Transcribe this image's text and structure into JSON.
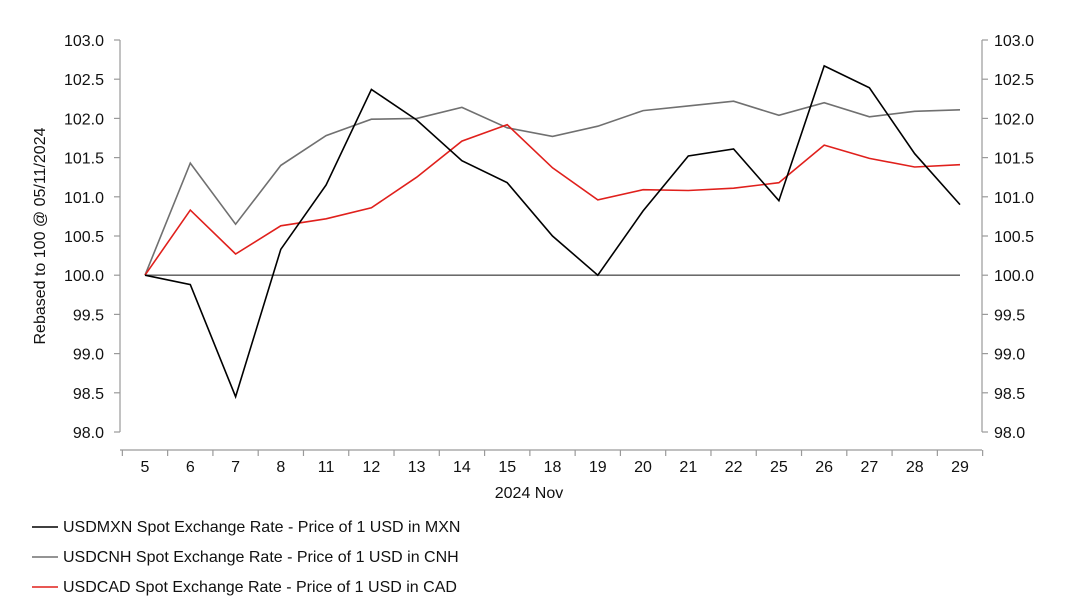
{
  "chart_data": {
    "type": "line",
    "title": "",
    "xlabel": "2024 Nov",
    "ylabel": "Rebased to 100 @ 05/11/2024",
    "categories": [
      "5",
      "6",
      "7",
      "8",
      "11",
      "12",
      "13",
      "14",
      "15",
      "18",
      "19",
      "20",
      "21",
      "22",
      "25",
      "26",
      "27",
      "28",
      "29"
    ],
    "ylim": [
      98.0,
      103.0
    ],
    "y_ticks": [
      "98.0",
      "98.5",
      "99.0",
      "99.5",
      "100.0",
      "100.5",
      "101.0",
      "101.5",
      "102.0",
      "102.5",
      "103.0"
    ],
    "secondary_y_axis": true,
    "grid": false,
    "baseline": 100.0,
    "legend_position": "bottom-left",
    "series": [
      {
        "name": "USDMXN Spot Exchange Rate - Price of 1 USD in MXN",
        "color": "#000000",
        "values": [
          100.0,
          99.88,
          98.45,
          100.33,
          101.15,
          102.37,
          101.98,
          101.46,
          101.18,
          100.5,
          100.0,
          100.82,
          101.52,
          101.61,
          100.95,
          102.67,
          102.39,
          101.55,
          100.9
        ]
      },
      {
        "name": "USDCNH Spot Exchange Rate - Price of 1 USD in CNH",
        "color": "#707070",
        "values": [
          100.0,
          101.43,
          100.65,
          101.4,
          101.78,
          101.99,
          102.0,
          102.14,
          101.88,
          101.77,
          101.9,
          102.1,
          102.16,
          102.22,
          102.04,
          102.2,
          102.02,
          102.09,
          102.11
        ]
      },
      {
        "name": "USDCAD Spot Exchange Rate - Price of 1 USD in CAD",
        "color": "#e0201c",
        "values": [
          100.0,
          100.83,
          100.27,
          100.63,
          100.72,
          100.86,
          101.25,
          101.71,
          101.92,
          101.37,
          100.96,
          101.09,
          101.08,
          101.11,
          101.18,
          101.66,
          101.49,
          101.38,
          101.41
        ]
      }
    ]
  }
}
